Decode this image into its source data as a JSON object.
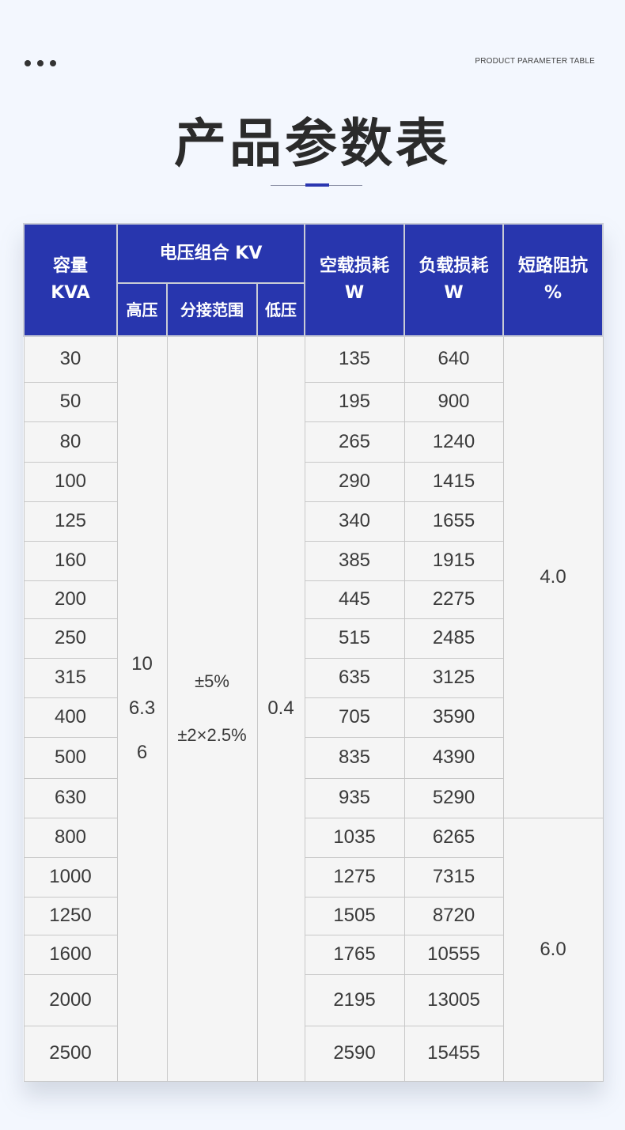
{
  "header": {
    "subtitle_en": "PRODUCT PARAMETER TABLE",
    "title": "产品参数表"
  },
  "table": {
    "headers": {
      "capacity": "容量",
      "capacity_unit": "KVA",
      "voltage_group": "电压组合 KV",
      "hv": "高压",
      "tap_range": "分接范围",
      "lv": "低压",
      "no_load_loss": "空载损耗",
      "no_load_unit": "W",
      "load_loss": "负载损耗",
      "load_unit": "W",
      "impedance": "短路阻抗",
      "impedance_unit": "%"
    },
    "hv_values": [
      "10",
      "6.3",
      "6"
    ],
    "tap_values": [
      "±5%",
      "±2×2.5%"
    ],
    "lv_value": "0.4",
    "impedance_groups": [
      "4.0",
      "6.0"
    ],
    "rows": [
      {
        "capacity": "30",
        "no_load": "135",
        "load": "640"
      },
      {
        "capacity": "50",
        "no_load": "195",
        "load": "900"
      },
      {
        "capacity": "80",
        "no_load": "265",
        "load": "1240"
      },
      {
        "capacity": "100",
        "no_load": "290",
        "load": "1415"
      },
      {
        "capacity": "125",
        "no_load": "340",
        "load": "1655"
      },
      {
        "capacity": "160",
        "no_load": "385",
        "load": "1915"
      },
      {
        "capacity": "200",
        "no_load": "445",
        "load": "2275"
      },
      {
        "capacity": "250",
        "no_load": "515",
        "load": "2485"
      },
      {
        "capacity": "315",
        "no_load": "635",
        "load": "3125"
      },
      {
        "capacity": "400",
        "no_load": "705",
        "load": "3590"
      },
      {
        "capacity": "500",
        "no_load": "835",
        "load": "4390"
      },
      {
        "capacity": "630",
        "no_load": "935",
        "load": "5290"
      },
      {
        "capacity": "800",
        "no_load": "1035",
        "load": "6265"
      },
      {
        "capacity": "1000",
        "no_load": "1275",
        "load": "7315"
      },
      {
        "capacity": "1250",
        "no_load": "1505",
        "load": "8720"
      },
      {
        "capacity": "1600",
        "no_load": "1765",
        "load": "10555"
      },
      {
        "capacity": "2000",
        "no_load": "2195",
        "load": "13005"
      },
      {
        "capacity": "2500",
        "no_load": "2590",
        "load": "15455"
      }
    ]
  },
  "colors": {
    "header_bg": "#2836ae",
    "cell_bg": "#f5f5f5",
    "page_bg": "#f3f7fe"
  }
}
